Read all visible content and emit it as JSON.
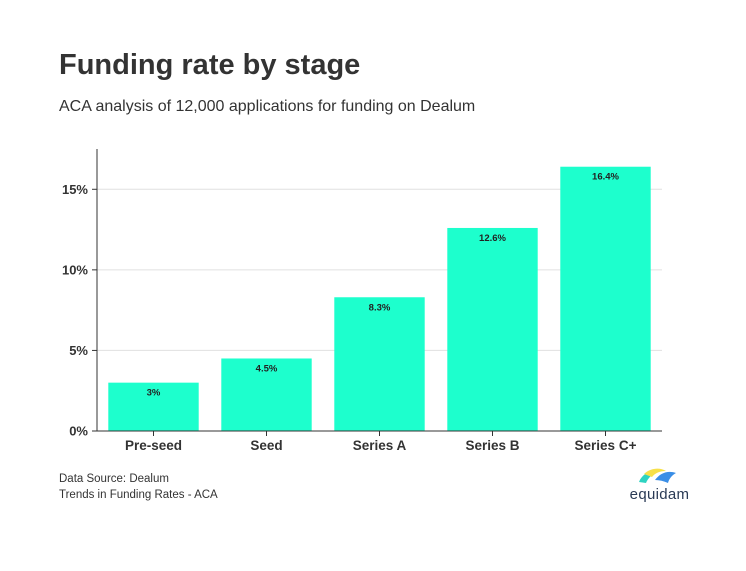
{
  "header": {
    "title": "Funding rate by stage",
    "subtitle": "ACA analysis of 12,000 applications for funding on Dealum"
  },
  "footer": {
    "source": "Data Source: Dealum",
    "note": "Trends in Funding Rates - ACA"
  },
  "logo": {
    "text": "equidam",
    "icon": "equidam-logo-icon",
    "colors": [
      "#f7e04a",
      "#2ed3c1",
      "#3a8ee6"
    ]
  },
  "chart_data": {
    "type": "bar",
    "title": "Funding rate by stage",
    "categories": [
      "Pre-seed",
      "Seed",
      "Series A",
      "Series B",
      "Series C+"
    ],
    "values": [
      3,
      4.5,
      8.3,
      12.6,
      16.4
    ],
    "data_labels": [
      "3%",
      "4.5%",
      "8.3%",
      "12.6%",
      "16.4%"
    ],
    "ylim": [
      0,
      17.5
    ],
    "yticks": [
      0,
      5,
      10,
      15
    ],
    "ytick_labels": [
      "0%",
      "5%",
      "10%",
      "15%"
    ],
    "grid": true,
    "bar_color": "#1dffcd",
    "grid_color": "#e0e0e0",
    "axis_color": "#333333"
  }
}
